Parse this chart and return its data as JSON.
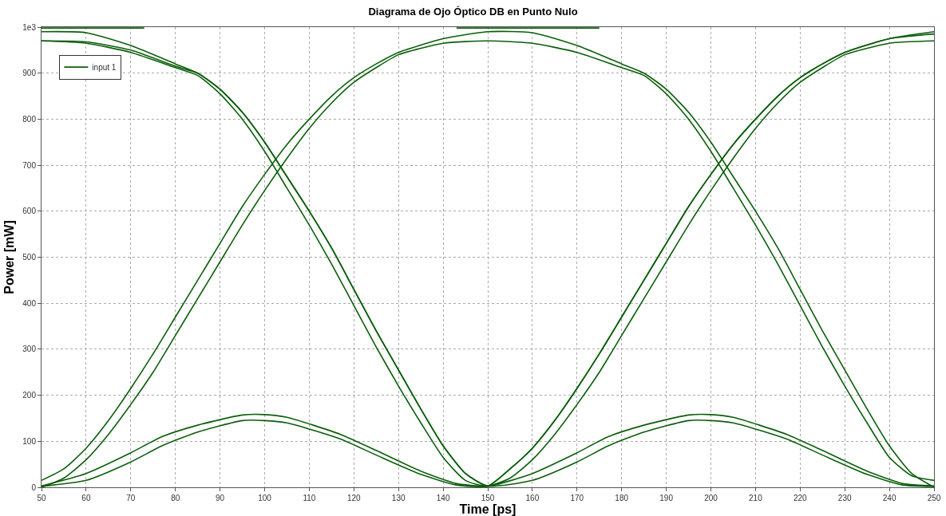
{
  "chart_data": {
    "type": "line",
    "title": "Diagrama de Ojo Óptico DB en Punto Nulo",
    "xlabel": "Time [ps]",
    "ylabel": "Power [mW]",
    "xlim": [
      50,
      250
    ],
    "xticks": [
      50,
      60,
      70,
      80,
      90,
      100,
      110,
      120,
      130,
      140,
      150,
      160,
      170,
      180,
      190,
      200,
      210,
      220,
      230,
      240,
      250
    ],
    "ylim": [
      0,
      1000
    ],
    "yticks": [
      0,
      100,
      200,
      300,
      400,
      500,
      600,
      700,
      800,
      900,
      {
        "value": 1000,
        "label": "1e3"
      }
    ],
    "grid": true,
    "legend": "top left",
    "marker": "none",
    "line_style": "solid",
    "series": [
      {
        "name": "input 1",
        "color": "#0b5e0b",
        "x": [
          50,
          60,
          70,
          80,
          85,
          90,
          95,
          100,
          105,
          110,
          115,
          120,
          125,
          130,
          135,
          140,
          145,
          150,
          155,
          160,
          165,
          170,
          175,
          180,
          185,
          190,
          195,
          200,
          205,
          210,
          215,
          220,
          225,
          230,
          240,
          250
        ],
        "values": [
          990,
          988,
          960,
          920,
          900,
          865,
          815,
          750,
          675,
          600,
          520,
          430,
          340,
          255,
          170,
          90,
          30,
          3,
          40,
          85,
          145,
          215,
          290,
          370,
          450,
          530,
          610,
          680,
          745,
          800,
          850,
          890,
          920,
          945,
          975,
          990
        ]
      },
      {
        "color": "#0b5e0b",
        "x": [
          50,
          55,
          60,
          65,
          70,
          75,
          80,
          85,
          90,
          95,
          100,
          105,
          110,
          115,
          120,
          125,
          130,
          140,
          150,
          160,
          170,
          180,
          185,
          190,
          195,
          200,
          205,
          210,
          215,
          220,
          225,
          230,
          235,
          240,
          245,
          250
        ],
        "values": [
          15,
          40,
          85,
          145,
          215,
          290,
          370,
          450,
          530,
          610,
          680,
          745,
          800,
          850,
          890,
          920,
          945,
          975,
          990,
          988,
          960,
          920,
          900,
          865,
          815,
          750,
          675,
          600,
          520,
          430,
          340,
          255,
          170,
          90,
          30,
          0
        ]
      },
      {
        "color": "#0b5e0b",
        "x": [
          50,
          60,
          70,
          77,
          85,
          95,
          100,
          105,
          117,
          125,
          135,
          143,
          150,
          155,
          160,
          165,
          170,
          175,
          180,
          185,
          190,
          195,
          200,
          205,
          210,
          215,
          220,
          225,
          230,
          240,
          250
        ],
        "values": [
          3,
          30,
          75,
          110,
          135,
          157,
          158,
          152,
          115,
          80,
          35,
          8,
          3,
          20,
          60,
          115,
          180,
          250,
          330,
          410,
          490,
          570,
          645,
          715,
          780,
          835,
          880,
          912,
          940,
          965,
          970
        ]
      },
      {
        "color": "#0b5e0b",
        "x": [
          50,
          60,
          70,
          80,
          85,
          90,
          95,
          100,
          105,
          110,
          115,
          120,
          125,
          130,
          135,
          140,
          145,
          150,
          160,
          170,
          177,
          185,
          195,
          200,
          205,
          217,
          225,
          235,
          243,
          250
        ],
        "values": [
          970,
          968,
          950,
          915,
          900,
          865,
          815,
          750,
          675,
          600,
          520,
          430,
          340,
          255,
          170,
          90,
          30,
          3,
          15,
          55,
          90,
          120,
          145,
          145,
          140,
          105,
          70,
          28,
          5,
          2
        ]
      },
      {
        "color": "#0b5e0b",
        "x": [
          50,
          55,
          60,
          65,
          70,
          75,
          80,
          85,
          90,
          95,
          100,
          105,
          110,
          115,
          120,
          125,
          130,
          140,
          150,
          160,
          170,
          180,
          185,
          190,
          195,
          200,
          205,
          210,
          215,
          220,
          225,
          230,
          235,
          240,
          245,
          250
        ],
        "values": [
          0,
          20,
          60,
          115,
          180,
          250,
          330,
          410,
          490,
          570,
          645,
          715,
          780,
          835,
          880,
          912,
          940,
          965,
          970,
          965,
          945,
          912,
          895,
          855,
          800,
          730,
          650,
          570,
          485,
          395,
          305,
          220,
          140,
          65,
          25,
          15
        ]
      },
      {
        "color": "#0b5e0b",
        "x": [
          50,
          60,
          70,
          77,
          85,
          95,
          100,
          105,
          117,
          125,
          135,
          143,
          150,
          160,
          170,
          177,
          185,
          195,
          200,
          205,
          217,
          225,
          235,
          243,
          250
        ],
        "values": [
          2,
          15,
          55,
          90,
          120,
          145,
          145,
          140,
          105,
          70,
          28,
          5,
          2,
          30,
          75,
          110,
          135,
          157,
          158,
          152,
          115,
          80,
          35,
          8,
          3
        ]
      },
      {
        "color": "#0b5e0b",
        "x": [
          50,
          60,
          70,
          80,
          85,
          90,
          95,
          100,
          105,
          110,
          115,
          120,
          125,
          130,
          135,
          140,
          145,
          150,
          155,
          160,
          165,
          170,
          175,
          180,
          185,
          190,
          195,
          200,
          205,
          210,
          215,
          220,
          225,
          230,
          240,
          250
        ],
        "values": [
          970,
          965,
          945,
          912,
          895,
          855,
          800,
          730,
          650,
          570,
          485,
          395,
          305,
          220,
          140,
          65,
          15,
          3,
          40,
          85,
          145,
          215,
          290,
          370,
          450,
          530,
          610,
          680,
          745,
          800,
          850,
          890,
          920,
          945,
          975,
          985
        ]
      },
      {
        "color": "#0b5e0b",
        "x": [
          50,
          73
        ],
        "values": [
          998,
          998
        ]
      },
      {
        "color": "#0b5e0b",
        "x": [
          143,
          175
        ],
        "values": [
          998,
          998
        ]
      }
    ]
  }
}
